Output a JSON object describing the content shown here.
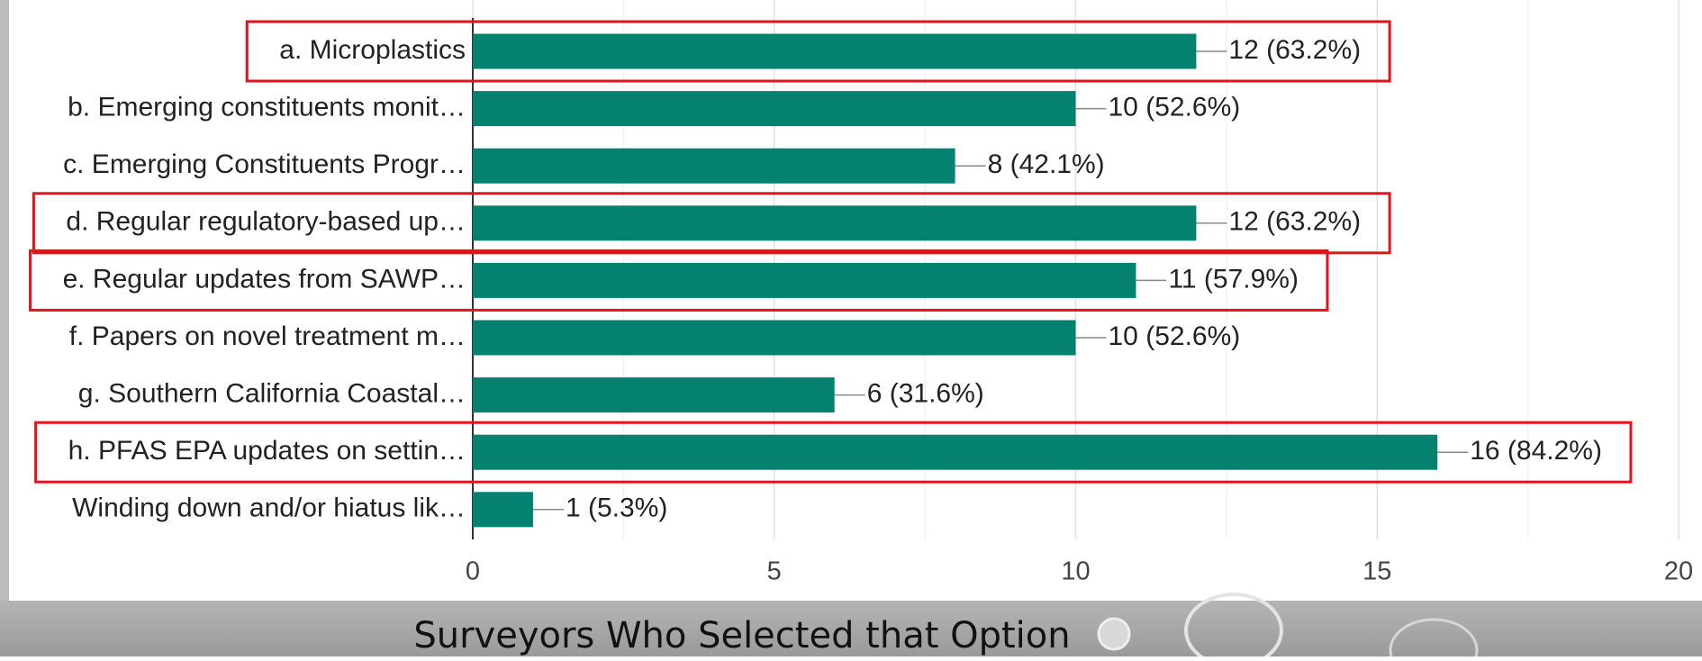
{
  "chart_data": {
    "type": "bar",
    "orientation": "horizontal",
    "x_label": "Surveyors Who Selected that Option",
    "categories": [
      "a. Microplastics",
      "b. Emerging constituents monit…",
      "c. Emerging Constituents Progr…",
      "d. Regular regulatory-based up…",
      "e. Regular updates from SAWP…",
      "f. Papers on novel treatment m…",
      "g. Southern California Coastal…",
      "h. PFAS EPA updates on settin…",
      "Winding down and/or hiatus lik…"
    ],
    "values": [
      12,
      10,
      8,
      12,
      11,
      10,
      6,
      16,
      1
    ],
    "value_labels": [
      "12 (63.2%)",
      "10 (52.6%)",
      "8 (42.1%)",
      "12 (63.2%)",
      "11 (57.9%)",
      "10 (52.6%)",
      "6 (31.6%)",
      "16 (84.2%)",
      "1 (5.3%)"
    ],
    "highlighted": [
      true,
      false,
      false,
      true,
      true,
      false,
      false,
      true,
      false
    ],
    "color": "#058170",
    "highlight_color": "#e3131b",
    "xlim": [
      0,
      20
    ],
    "xticks": [
      0,
      5,
      10,
      15,
      20
    ],
    "grid": true
  }
}
